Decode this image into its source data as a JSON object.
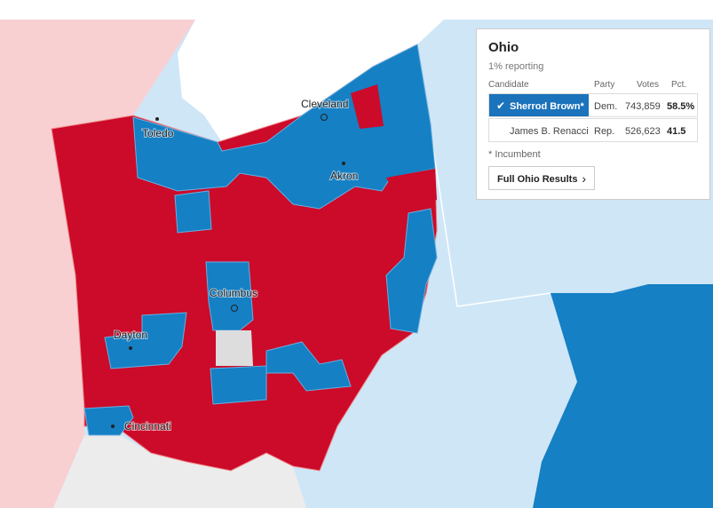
{
  "map": {
    "cities": [
      "Toledo",
      "Cleveland",
      "Akron",
      "Columbus",
      "Dayton",
      "Cincinnati"
    ]
  },
  "panel": {
    "title": "Ohio",
    "reporting": "1% reporting",
    "columns": [
      "Candidate",
      "Party",
      "Votes",
      "Pct."
    ],
    "rows": [
      [
        "Sherrod Brown*",
        "Dem.",
        "743,859",
        "58.5%"
      ],
      [
        "James B. Renacci",
        "Rep.",
        "526,623",
        "41.5"
      ]
    ],
    "footnote": "* Incumbent",
    "button": "Full Ohio Results"
  }
}
